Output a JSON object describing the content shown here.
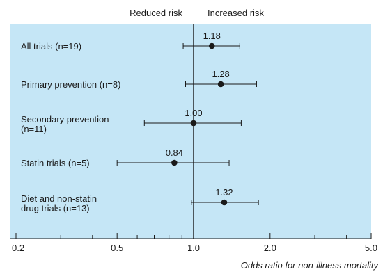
{
  "chart_data": {
    "type": "forest",
    "header_left": "Reduced risk",
    "header_right": "Increased risk",
    "xlabel": "Odds ratio for non-illness mortality",
    "x_scale": "log",
    "x_reference": 1.0,
    "xlim": [
      0.2,
      5.0
    ],
    "x_ticks": [
      {
        "value": 0.2,
        "label": "0.2"
      },
      {
        "value": 0.5,
        "label": "0.5"
      },
      {
        "value": 1.0,
        "label": "1.0"
      },
      {
        "value": 2.0,
        "label": "2.0"
      },
      {
        "value": 5.0,
        "label": "5.0"
      }
    ],
    "x_minor_ticks": [
      0.3,
      0.4,
      0.6,
      0.7,
      0.8,
      0.9,
      3.0,
      4.0
    ],
    "rows": [
      {
        "label_lines": [
          "All trials (n=19)"
        ],
        "estimate": 1.18,
        "estimate_label": "1.18",
        "ci": [
          0.91,
          1.52
        ]
      },
      {
        "label_lines": [
          "Primary prevention (n=8)"
        ],
        "estimate": 1.28,
        "estimate_label": "1.28",
        "ci": [
          0.93,
          1.77
        ]
      },
      {
        "label_lines": [
          "Secondary prevention",
          "(n=11)"
        ],
        "estimate": 1.0,
        "estimate_label": "1.00",
        "ci": [
          0.64,
          1.54
        ]
      },
      {
        "label_lines": [
          "Statin trials (n=5)"
        ],
        "estimate": 0.84,
        "estimate_label": "0.84",
        "ci": [
          0.5,
          1.38
        ]
      },
      {
        "label_lines": [
          "Diet and non-statin",
          "drug trials (n=13)"
        ],
        "estimate": 1.32,
        "estimate_label": "1.32",
        "ci": [
          0.98,
          1.8
        ]
      }
    ],
    "colors": {
      "panel": "#c5e6f6",
      "marks": "#1a1a1a"
    }
  }
}
